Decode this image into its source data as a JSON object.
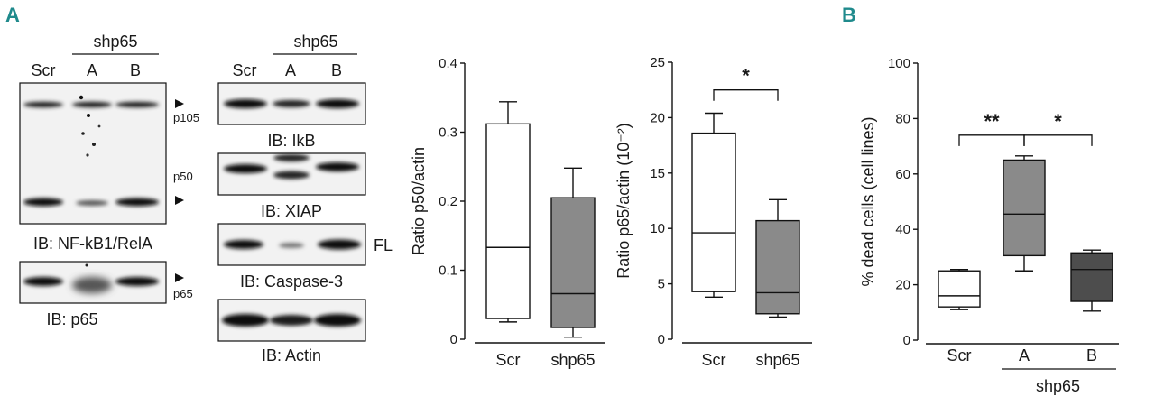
{
  "panels": {
    "a": "A",
    "b": "B"
  },
  "colors": {
    "accent": "#1f8a8c",
    "scr_fill": "#ffffff",
    "shp_fill": "#8a8a8a",
    "b_fill": "#4d4d4d"
  },
  "blots": {
    "left": {
      "group_label": "shp65",
      "lanes": [
        "Scr",
        "A",
        "B"
      ],
      "main_caption": "IB: NF-kB1/RelA",
      "p65_caption": "IB: p65",
      "band_labels": {
        "p105": "p105",
        "p50": "p50",
        "p65": "p65"
      }
    },
    "middle": {
      "group_label": "shp65",
      "lanes": [
        "Scr",
        "A",
        "B"
      ],
      "captions": [
        "IB: IkB",
        "IB: XIAP",
        "IB: Caspase-3",
        "IB: Actin"
      ],
      "fl_label": "FL"
    }
  },
  "chart_data": [
    {
      "type": "box",
      "title": "",
      "xlabel": "",
      "ylabel": "Ratio p50/actin",
      "ylim": [
        0,
        0.4
      ],
      "yticks": [
        "0",
        "0.1",
        "0.2",
        "0.3",
        "0.4"
      ],
      "categories": [
        "Scr",
        "shp65"
      ],
      "boxes": [
        {
          "name": "Scr",
          "min": 0.025,
          "q1": 0.03,
          "median": 0.133,
          "q3": 0.312,
          "max": 0.344,
          "fill": "#ffffff"
        },
        {
          "name": "shp65",
          "min": 0.003,
          "q1": 0.017,
          "median": 0.066,
          "q3": 0.205,
          "max": 0.248,
          "fill": "#8a8a8a"
        }
      ],
      "significance": []
    },
    {
      "type": "box",
      "title": "",
      "xlabel": "",
      "ylabel": "Ratio p65/actin (10⁻²)",
      "ylim": [
        0,
        25
      ],
      "yticks": [
        "0",
        "5",
        "10",
        "15",
        "20",
        "25"
      ],
      "categories": [
        "Scr",
        "shp65"
      ],
      "boxes": [
        {
          "name": "Scr",
          "min": 3.8,
          "q1": 4.3,
          "median": 9.6,
          "q3": 18.6,
          "max": 20.4,
          "fill": "#ffffff"
        },
        {
          "name": "shp65",
          "min": 2.0,
          "q1": 2.3,
          "median": 4.2,
          "q3": 10.7,
          "max": 12.6,
          "fill": "#8a8a8a"
        }
      ],
      "significance": [
        {
          "from": 0,
          "to": 1,
          "label": "*",
          "y": 22.5
        }
      ]
    },
    {
      "type": "box",
      "title": "",
      "xlabel": "",
      "ylabel": "% dead cells (cell lines)",
      "ylim": [
        0,
        100
      ],
      "yticks": [
        "0",
        "20",
        "40",
        "60",
        "80",
        "100"
      ],
      "categories": [
        "Scr",
        "A",
        "B"
      ],
      "group_label": "shp65",
      "boxes": [
        {
          "name": "Scr",
          "min": 11,
          "q1": 12,
          "median": 16,
          "q3": 25,
          "max": 25.5,
          "fill": "#ffffff"
        },
        {
          "name": "A",
          "min": 25,
          "q1": 30.5,
          "median": 45.5,
          "q3": 65,
          "max": 66.5,
          "fill": "#8a8a8a"
        },
        {
          "name": "B",
          "min": 10.5,
          "q1": 14,
          "median": 25.5,
          "q3": 31.5,
          "max": 32.5,
          "fill": "#4d4d4d"
        }
      ],
      "significance": [
        {
          "from": 0,
          "to": 1,
          "label": "**",
          "y": 74
        },
        {
          "from": 1,
          "to": 2,
          "label": "*",
          "y": 74
        }
      ]
    }
  ]
}
